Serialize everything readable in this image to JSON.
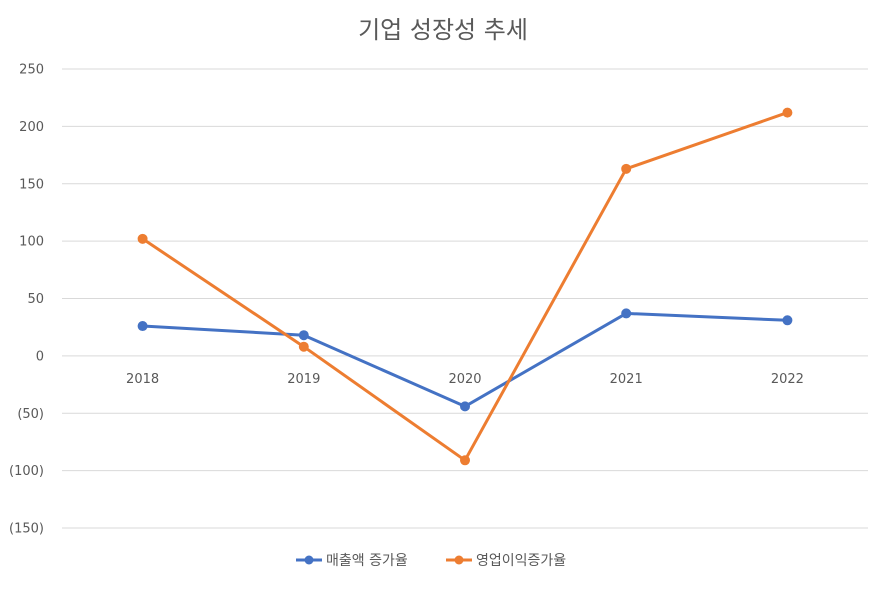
{
  "chart_data": {
    "type": "line",
    "title": "기업 성장성 추세",
    "categories": [
      "2018",
      "2019",
      "2020",
      "2021",
      "2022"
    ],
    "series": [
      {
        "name": "매출액 증가율",
        "values": [
          26,
          18,
          -44,
          37,
          31
        ],
        "color": "#4472C4"
      },
      {
        "name": "영업이익증가율",
        "values": [
          102,
          8,
          -91,
          163,
          212
        ],
        "color": "#ED7D31"
      }
    ],
    "ylim": [
      -150,
      250
    ],
    "yticks": [
      250,
      200,
      150,
      100,
      50,
      0,
      -50,
      -100,
      -150
    ],
    "ytick_labels": [
      "250",
      "200",
      "150",
      "100",
      "50",
      "0",
      "(50)",
      "(100)",
      "(150)"
    ],
    "grid": true,
    "legend": "bottom"
  }
}
